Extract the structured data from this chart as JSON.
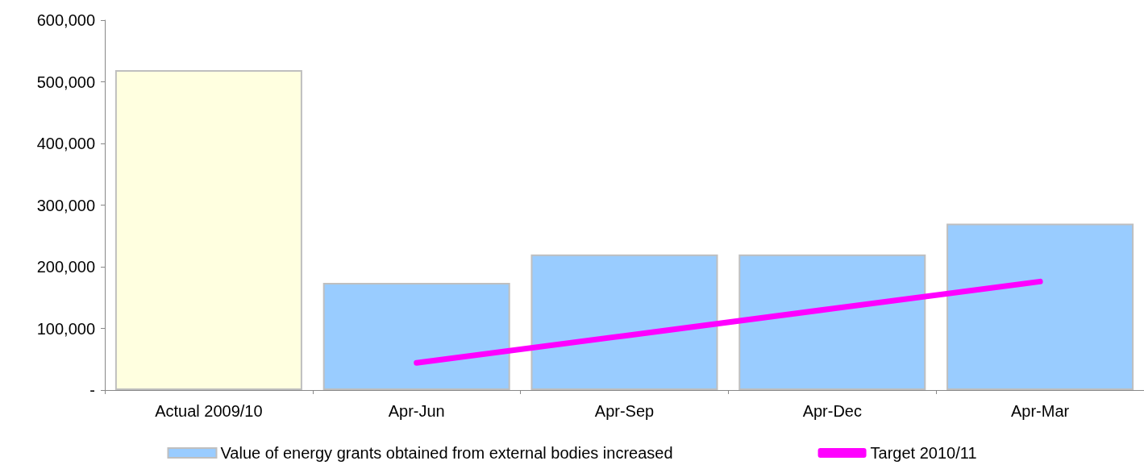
{
  "chart_data": {
    "type": "bar",
    "categories": [
      "Actual 2009/10",
      "Apr-Jun",
      "Apr-Sep",
      "Apr-Dec",
      "Apr-Mar"
    ],
    "series": [
      {
        "name": "Value of energy grants obtained from external bodies increased",
        "color": "#99ccff",
        "colors": [
          "#ffffe0",
          "#99ccff",
          "#99ccff",
          "#99ccff",
          "#99ccff"
        ],
        "values": [
          519000,
          174000,
          220000,
          220000,
          270000
        ]
      },
      {
        "name": "Target 2010/11",
        "type": "line",
        "color": "#ff00ff",
        "values": [
          null,
          44000,
          88000,
          132000,
          176000
        ]
      }
    ],
    "ylim": [
      0,
      600000
    ],
    "yticks": [
      {
        "value": 0,
        "label": "-"
      },
      {
        "value": 100000,
        "label": "100,000"
      },
      {
        "value": 200000,
        "label": "200,000"
      },
      {
        "value": 300000,
        "label": "300,000"
      },
      {
        "value": 400000,
        "label": "400,000"
      },
      {
        "value": 500000,
        "label": "500,000"
      },
      {
        "value": 600000,
        "label": "600,000"
      }
    ],
    "grid": false,
    "legend": "bottom",
    "marker": "none",
    "line_style": "solid"
  }
}
